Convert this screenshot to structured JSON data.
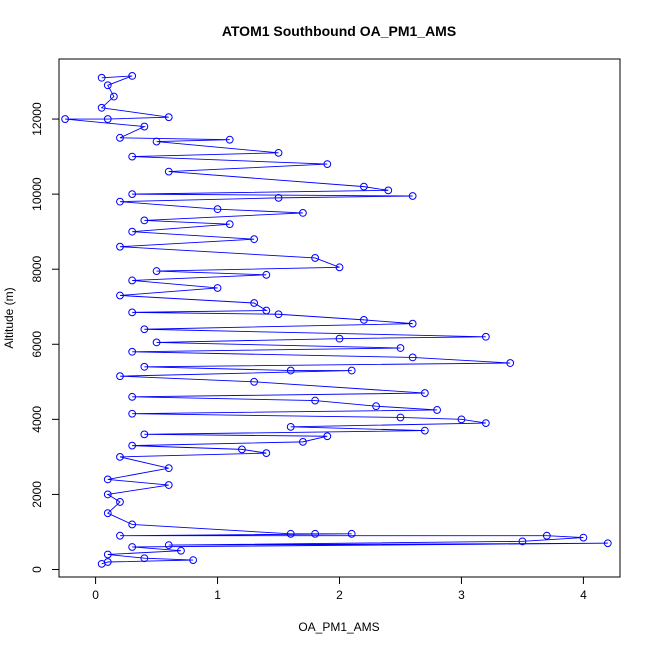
{
  "chart_data": {
    "type": "line",
    "title": "ATOM1 Southbound OA_PM1_AMS",
    "xlabel": "OA_PM1_AMS",
    "ylabel": "Altitude (m)",
    "xlim": [
      -0.3,
      4.3
    ],
    "ylim": [
      -200,
      13600
    ],
    "x_ticks": [
      0,
      1,
      2,
      3,
      4
    ],
    "y_ticks": [
      0,
      2000,
      4000,
      6000,
      8000,
      10000,
      12000
    ],
    "grid": false,
    "legend": "none",
    "marker": "open-circle",
    "series": [
      {
        "color": "#0000ff",
        "points": [
          [
            0.05,
            13100
          ],
          [
            0.3,
            13150
          ],
          [
            0.1,
            12900
          ],
          [
            0.15,
            12600
          ],
          [
            0.05,
            12300
          ],
          [
            0.6,
            12050
          ],
          [
            0.1,
            12000
          ],
          [
            -0.25,
            12000
          ],
          [
            0.4,
            11800
          ],
          [
            0.2,
            11500
          ],
          [
            1.1,
            11450
          ],
          [
            0.5,
            11400
          ],
          [
            1.5,
            11100
          ],
          [
            0.3,
            11000
          ],
          [
            1.9,
            10800
          ],
          [
            0.6,
            10600
          ],
          [
            2.2,
            10200
          ],
          [
            2.4,
            10100
          ],
          [
            0.3,
            10000
          ],
          [
            2.6,
            9950
          ],
          [
            1.5,
            9900
          ],
          [
            0.2,
            9800
          ],
          [
            1.0,
            9600
          ],
          [
            1.7,
            9500
          ],
          [
            0.4,
            9300
          ],
          [
            1.1,
            9200
          ],
          [
            0.3,
            9000
          ],
          [
            1.3,
            8800
          ],
          [
            0.2,
            8600
          ],
          [
            1.8,
            8300
          ],
          [
            2.0,
            8050
          ],
          [
            0.5,
            7950
          ],
          [
            1.4,
            7850
          ],
          [
            0.3,
            7700
          ],
          [
            1.0,
            7500
          ],
          [
            0.2,
            7300
          ],
          [
            1.3,
            7100
          ],
          [
            1.4,
            6900
          ],
          [
            0.3,
            6850
          ],
          [
            1.5,
            6800
          ],
          [
            2.2,
            6650
          ],
          [
            2.6,
            6550
          ],
          [
            0.4,
            6400
          ],
          [
            3.2,
            6200
          ],
          [
            2.0,
            6150
          ],
          [
            0.5,
            6050
          ],
          [
            2.5,
            5900
          ],
          [
            0.3,
            5800
          ],
          [
            2.6,
            5650
          ],
          [
            3.4,
            5500
          ],
          [
            0.4,
            5400
          ],
          [
            1.6,
            5300
          ],
          [
            2.1,
            5300
          ],
          [
            0.2,
            5150
          ],
          [
            1.3,
            5000
          ],
          [
            2.7,
            4700
          ],
          [
            0.3,
            4600
          ],
          [
            1.8,
            4500
          ],
          [
            2.3,
            4350
          ],
          [
            2.8,
            4250
          ],
          [
            0.3,
            4150
          ],
          [
            2.5,
            4050
          ],
          [
            3.0,
            4000
          ],
          [
            3.2,
            3900
          ],
          [
            1.6,
            3800
          ],
          [
            2.7,
            3700
          ],
          [
            0.4,
            3600
          ],
          [
            1.9,
            3550
          ],
          [
            1.7,
            3400
          ],
          [
            0.3,
            3300
          ],
          [
            1.2,
            3200
          ],
          [
            1.4,
            3100
          ],
          [
            0.2,
            3000
          ],
          [
            0.6,
            2700
          ],
          [
            0.1,
            2400
          ],
          [
            0.6,
            2250
          ],
          [
            0.1,
            2000
          ],
          [
            0.2,
            1800
          ],
          [
            0.1,
            1500
          ],
          [
            0.3,
            1200
          ],
          [
            1.6,
            950
          ],
          [
            1.8,
            950
          ],
          [
            2.1,
            950
          ],
          [
            0.2,
            900
          ],
          [
            3.7,
            900
          ],
          [
            4.0,
            850
          ],
          [
            3.5,
            750
          ],
          [
            0.6,
            650
          ],
          [
            4.2,
            700
          ],
          [
            0.3,
            600
          ],
          [
            0.7,
            500
          ],
          [
            0.1,
            400
          ],
          [
            0.4,
            300
          ],
          [
            0.8,
            250
          ],
          [
            0.1,
            200
          ],
          [
            0.05,
            150
          ]
        ]
      }
    ]
  }
}
